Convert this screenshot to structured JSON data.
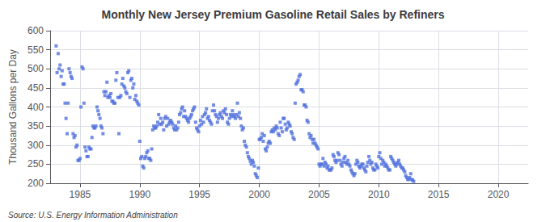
{
  "chart_data": {
    "type": "scatter",
    "title": "Monthly New Jersey Premium Gasoline Retail Sales by Refiners",
    "ylabel": "Thousand Gallons per Day",
    "annotations": [
      "Source: U.S. Energy Information Administration"
    ],
    "marker": "square",
    "grid": true,
    "xlim": [
      1982.5,
      2022.5
    ],
    "xticks": [
      1985,
      1990,
      1995,
      2000,
      2005,
      2010,
      2015,
      2020
    ],
    "ylim": [
      200,
      600
    ],
    "yticks": [
      200,
      250,
      300,
      350,
      400,
      450,
      500,
      550,
      600
    ],
    "x": [
      1983.0,
      1983.08,
      1983.17,
      1983.25,
      1983.33,
      1983.42,
      1983.5,
      1983.58,
      1983.67,
      1983.75,
      1983.83,
      1983.92,
      1984.0,
      1984.08,
      1984.17,
      1984.25,
      1984.33,
      1984.42,
      1984.5,
      1984.58,
      1984.67,
      1984.75,
      1984.83,
      1984.92,
      1985.0,
      1985.08,
      1985.17,
      1985.25,
      1985.33,
      1985.42,
      1985.5,
      1985.58,
      1985.67,
      1985.75,
      1985.83,
      1985.92,
      1986.0,
      1986.08,
      1986.17,
      1986.25,
      1986.33,
      1986.42,
      1986.5,
      1986.58,
      1986.67,
      1986.75,
      1986.83,
      1986.92,
      1987.0,
      1987.08,
      1987.17,
      1987.25,
      1987.33,
      1987.42,
      1987.5,
      1987.58,
      1987.67,
      1987.75,
      1987.83,
      1987.92,
      1988.0,
      1988.08,
      1988.17,
      1988.25,
      1988.33,
      1988.42,
      1988.5,
      1988.58,
      1988.67,
      1988.75,
      1988.83,
      1988.92,
      1989.0,
      1989.08,
      1989.17,
      1989.25,
      1989.33,
      1989.42,
      1989.5,
      1989.58,
      1989.67,
      1989.75,
      1989.83,
      1989.92,
      1990.0,
      1990.08,
      1990.17,
      1990.25,
      1990.33,
      1990.42,
      1990.5,
      1990.58,
      1990.67,
      1990.75,
      1990.83,
      1990.92,
      1991.0,
      1991.08,
      1991.17,
      1991.25,
      1991.33,
      1991.42,
      1991.5,
      1991.58,
      1991.67,
      1991.75,
      1991.83,
      1991.92,
      1992.0,
      1992.08,
      1992.17,
      1992.25,
      1992.33,
      1992.42,
      1992.5,
      1992.58,
      1992.67,
      1992.75,
      1992.83,
      1992.92,
      1993.0,
      1993.08,
      1993.17,
      1993.25,
      1993.33,
      1993.42,
      1993.5,
      1993.58,
      1993.67,
      1993.75,
      1993.83,
      1993.92,
      1994.0,
      1994.08,
      1994.17,
      1994.25,
      1994.33,
      1994.42,
      1994.5,
      1994.58,
      1994.67,
      1994.75,
      1994.83,
      1994.92,
      1995.0,
      1995.08,
      1995.17,
      1995.25,
      1995.33,
      1995.42,
      1995.5,
      1995.58,
      1995.67,
      1995.75,
      1995.83,
      1995.92,
      1996.0,
      1996.08,
      1996.17,
      1996.25,
      1996.33,
      1996.42,
      1996.5,
      1996.58,
      1996.67,
      1996.75,
      1996.83,
      1996.92,
      1997.0,
      1997.08,
      1997.17,
      1997.25,
      1997.33,
      1997.42,
      1997.5,
      1997.58,
      1997.67,
      1997.75,
      1997.83,
      1997.92,
      1998.0,
      1998.08,
      1998.17,
      1998.25,
      1998.33,
      1998.42,
      1998.5,
      1998.58,
      1998.67,
      1998.75,
      1998.83,
      1998.92,
      1999.0,
      1999.08,
      1999.17,
      1999.25,
      1999.33,
      1999.42,
      1999.5,
      1999.58,
      1999.67,
      1999.75,
      1999.83,
      1999.92,
      2000.0,
      2000.08,
      2000.17,
      2000.25,
      2000.33,
      2000.42,
      2000.5,
      2000.58,
      2000.67,
      2000.75,
      2000.83,
      2000.92,
      2001.0,
      2001.08,
      2001.17,
      2001.25,
      2001.33,
      2001.42,
      2001.5,
      2001.58,
      2001.67,
      2001.75,
      2001.83,
      2001.92,
      2002.0,
      2002.08,
      2002.17,
      2002.25,
      2002.33,
      2002.42,
      2002.5,
      2002.58,
      2002.67,
      2002.75,
      2002.83,
      2002.92,
      2003.0,
      2003.08,
      2003.17,
      2003.25,
      2003.33,
      2003.42,
      2003.5,
      2003.58,
      2003.67,
      2003.75,
      2003.83,
      2003.92,
      2004.0,
      2004.08,
      2004.17,
      2004.25,
      2004.33,
      2004.42,
      2004.5,
      2004.58,
      2004.67,
      2004.75,
      2004.83,
      2004.92,
      2005.0,
      2005.08,
      2005.17,
      2005.25,
      2005.33,
      2005.42,
      2005.5,
      2005.58,
      2005.67,
      2005.75,
      2005.83,
      2005.92,
      2006.0,
      2006.08,
      2006.17,
      2006.25,
      2006.33,
      2006.42,
      2006.5,
      2006.58,
      2006.67,
      2006.75,
      2006.83,
      2006.92,
      2007.0,
      2007.08,
      2007.17,
      2007.25,
      2007.33,
      2007.42,
      2007.5,
      2007.58,
      2007.67,
      2007.75,
      2007.83,
      2007.92,
      2008.0,
      2008.08,
      2008.17,
      2008.25,
      2008.33,
      2008.42,
      2008.5,
      2008.58,
      2008.67,
      2008.75,
      2008.83,
      2008.92,
      2009.0,
      2009.08,
      2009.17,
      2009.25,
      2009.33,
      2009.42,
      2009.5,
      2009.58,
      2009.67,
      2009.75,
      2009.83,
      2009.92,
      2010.0,
      2010.08,
      2010.17,
      2010.25,
      2010.33,
      2010.42,
      2010.5,
      2010.58,
      2010.67,
      2010.75,
      2010.83,
      2010.92,
      2011.0,
      2011.08,
      2011.17,
      2011.25,
      2011.33,
      2011.42,
      2011.5,
      2011.58,
      2011.67,
      2011.75,
      2011.83,
      2011.92,
      2012.0,
      2012.08,
      2012.17,
      2012.25,
      2012.33,
      2012.42,
      2012.5,
      2012.58,
      2012.67,
      2012.75,
      2012.83,
      2012.92
    ],
    "values": [
      560,
      490,
      540,
      500,
      510,
      480,
      495,
      460,
      460,
      410,
      370,
      330,
      410,
      500,
      490,
      480,
      475,
      330,
      320,
      325,
      295,
      300,
      260,
      260,
      265,
      400,
      505,
      500,
      410,
      295,
      285,
      270,
      270,
      295,
      290,
      290,
      320,
      350,
      345,
      345,
      350,
      400,
      390,
      380,
      370,
      350,
      345,
      330,
      440,
      430,
      440,
      465,
      425,
      430,
      425,
      435,
      415,
      415,
      410,
      410,
      470,
      490,
      425,
      330,
      425,
      430,
      460,
      475,
      455,
      450,
      440,
      435,
      490,
      495,
      425,
      470,
      475,
      450,
      460,
      420,
      430,
      415,
      410,
      405,
      310,
      265,
      270,
      245,
      240,
      265,
      270,
      280,
      285,
      265,
      265,
      260,
      290,
      340,
      350,
      345,
      345,
      350,
      360,
      380,
      355,
      370,
      355,
      360,
      340,
      370,
      375,
      350,
      370,
      355,
      360,
      365,
      360,
      355,
      345,
      340,
      350,
      340,
      345,
      360,
      380,
      385,
      395,
      400,
      375,
      390,
      375,
      370,
      365,
      360,
      370,
      375,
      380,
      390,
      395,
      400,
      360,
      345,
      340,
      335,
      350,
      365,
      355,
      375,
      360,
      380,
      385,
      395,
      370,
      375,
      365,
      360,
      355,
      390,
      405,
      390,
      380,
      375,
      360,
      370,
      380,
      385,
      375,
      370,
      390,
      385,
      395,
      380,
      360,
      355,
      370,
      380,
      375,
      390,
      380,
      375,
      370,
      380,
      410,
      375,
      385,
      370,
      350,
      340,
      345,
      310,
      300,
      295,
      280,
      270,
      265,
      258,
      250,
      260,
      255,
      245,
      225,
      220,
      215,
      240,
      315,
      315,
      320,
      330,
      310,
      325,
      290,
      285,
      295,
      305,
      310,
      305,
      335,
      340,
      335,
      345,
      340,
      350,
      345,
      330,
      325,
      360,
      345,
      335,
      370,
      370,
      355,
      340,
      345,
      360,
      355,
      350,
      335,
      330,
      320,
      315,
      410,
      460,
      465,
      470,
      480,
      485,
      445,
      445,
      440,
      405,
      405,
      400,
      365,
      360,
      330,
      320,
      325,
      315,
      305,
      315,
      305,
      300,
      295,
      290,
      250,
      245,
      250,
      250,
      265,
      245,
      255,
      250,
      240,
      245,
      235,
      235,
      235,
      240,
      275,
      270,
      260,
      255,
      260,
      280,
      275,
      260,
      250,
      245,
      255,
      265,
      270,
      255,
      250,
      260,
      250,
      245,
      235,
      230,
      225,
      220,
      225,
      250,
      260,
      255,
      245,
      240,
      245,
      250,
      250,
      240,
      235,
      230,
      245,
      255,
      270,
      260,
      250,
      255,
      240,
      235,
      235,
      250,
      245,
      240,
      270,
      280,
      265,
      250,
      260,
      255,
      245,
      250,
      245,
      240,
      235,
      235,
      270,
      265,
      260,
      255,
      250,
      245,
      250,
      255,
      260,
      250,
      245,
      240,
      240,
      235,
      230,
      220,
      215,
      210,
      210,
      215,
      225,
      210,
      208,
      205
    ]
  }
}
